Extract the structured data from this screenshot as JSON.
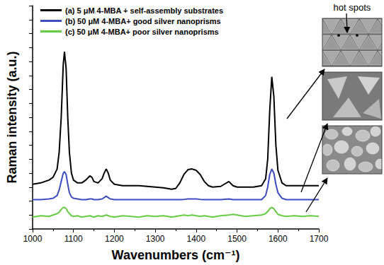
{
  "chart_data": {
    "type": "line",
    "x_label": "Wavenumbers (cm⁻¹)",
    "y_label": "Raman intensity (a.u.)",
    "annotations": [
      "hot spots"
    ],
    "legend": "top-left",
    "tick_labels": "x",
    "grid": false,
    "xlim": [
      1000,
      1700
    ],
    "xticks": [
      1000,
      1100,
      1200,
      1300,
      1400,
      1500,
      1600,
      1700
    ],
    "ylim": [
      0,
      16
    ],
    "yticks": [
      0,
      1,
      2,
      3,
      4,
      5,
      6,
      7,
      8,
      9,
      10,
      11,
      12,
      13,
      14,
      15,
      16
    ],
    "x": [
      1000,
      1020,
      1040,
      1050,
      1060,
      1065,
      1070,
      1075,
      1078,
      1082,
      1086,
      1090,
      1095,
      1100,
      1110,
      1120,
      1130,
      1140,
      1145,
      1150,
      1160,
      1170,
      1175,
      1180,
      1185,
      1190,
      1200,
      1220,
      1240,
      1260,
      1280,
      1300,
      1320,
      1340,
      1350,
      1360,
      1370,
      1380,
      1390,
      1400,
      1410,
      1420,
      1430,
      1440,
      1460,
      1480,
      1490,
      1500,
      1520,
      1540,
      1560,
      1570,
      1575,
      1580,
      1585,
      1590,
      1595,
      1600,
      1610,
      1620,
      1640,
      1660,
      1680,
      1700
    ],
    "series": [
      {
        "name": "(a) 5 μM 4-MBA + self-assembly substrates",
        "color": "#000000",
        "line_style": "solid",
        "values": [
          3.2,
          3.3,
          3.5,
          3.7,
          4.3,
          5.5,
          8.0,
          11.8,
          12.7,
          11.5,
          8.0,
          5.5,
          4.0,
          3.5,
          3.3,
          3.3,
          3.5,
          3.8,
          3.7,
          3.4,
          3.3,
          3.6,
          4.0,
          4.3,
          4.0,
          3.5,
          3.2,
          3.1,
          3.1,
          3.1,
          3.05,
          3.0,
          2.95,
          2.85,
          2.9,
          3.3,
          3.9,
          4.25,
          4.3,
          4.2,
          3.9,
          3.4,
          3.1,
          3.0,
          3.05,
          3.4,
          3.1,
          3.0,
          3.0,
          3.0,
          3.1,
          3.6,
          5.0,
          8.5,
          10.9,
          9.5,
          6.0,
          4.2,
          3.3,
          3.1,
          3.1,
          3.1,
          3.1,
          3.1
        ]
      },
      {
        "name": "(b) 50 μM 4-MBA+ good silver nanoprisms",
        "color": "#3b4cc0",
        "line_style": "solid",
        "values": [
          2.1,
          2.1,
          2.15,
          2.2,
          2.4,
          2.8,
          3.4,
          4.0,
          4.1,
          3.9,
          3.2,
          2.6,
          2.3,
          2.2,
          2.15,
          2.1,
          2.1,
          2.15,
          2.15,
          2.1,
          2.1,
          2.15,
          2.25,
          2.35,
          2.25,
          2.15,
          2.1,
          2.1,
          2.1,
          2.1,
          2.1,
          2.1,
          2.1,
          2.1,
          2.1,
          2.1,
          2.12,
          2.15,
          2.15,
          2.15,
          2.12,
          2.1,
          2.1,
          2.1,
          2.1,
          2.15,
          2.1,
          2.1,
          2.1,
          2.1,
          2.1,
          2.4,
          3.0,
          3.9,
          4.3,
          4.0,
          3.2,
          2.6,
          2.2,
          2.1,
          2.1,
          2.1,
          2.1,
          2.1
        ]
      },
      {
        "name": "(c) 50 μM 4-MBA+ poor silver nanoprisms",
        "color": "#66cc44",
        "line_style": "solid",
        "values": [
          0.85,
          0.95,
          0.9,
          1.0,
          1.1,
          1.2,
          1.4,
          1.55,
          1.55,
          1.45,
          1.25,
          1.1,
          0.95,
          0.9,
          0.95,
          0.85,
          0.9,
          0.95,
          0.9,
          0.85,
          0.95,
          0.9,
          0.95,
          1.0,
          0.95,
          0.9,
          0.85,
          0.95,
          0.9,
          0.85,
          0.95,
          0.9,
          0.95,
          0.85,
          0.9,
          0.95,
          1.0,
          0.95,
          1.0,
          0.95,
          0.9,
          0.95,
          0.9,
          0.85,
          0.95,
          1.0,
          1.05,
          1.0,
          0.9,
          0.95,
          1.0,
          1.1,
          1.25,
          1.45,
          1.55,
          1.45,
          1.25,
          1.05,
          0.95,
          0.9,
          0.95,
          0.9,
          0.95,
          0.9
        ]
      }
    ]
  }
}
